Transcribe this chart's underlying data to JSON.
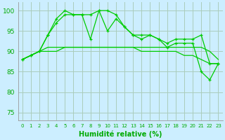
{
  "xlabel": "Humidité relative (%)",
  "bg_color": "#cceeff",
  "grid_color": "#aaccbb",
  "line_color": "#00cc00",
  "xlim": [
    -0.5,
    23.5
  ],
  "ylim": [
    73,
    102
  ],
  "yticks": [
    75,
    80,
    85,
    90,
    95,
    100
  ],
  "xticks": [
    0,
    1,
    2,
    3,
    4,
    5,
    6,
    7,
    8,
    9,
    10,
    11,
    12,
    13,
    14,
    15,
    16,
    17,
    18,
    19,
    20,
    21,
    22,
    23
  ],
  "series_marked": [
    [
      88,
      89,
      90,
      94,
      98,
      100,
      99,
      99,
      99,
      100,
      100,
      99,
      96,
      94,
      93,
      94,
      93,
      92,
      93,
      93,
      93,
      94,
      87,
      87
    ],
    [
      88,
      89,
      90,
      94,
      97,
      99,
      99,
      99,
      93,
      100,
      95,
      98,
      96,
      94,
      94,
      94,
      93,
      91,
      92,
      92,
      92,
      85,
      83,
      87
    ]
  ],
  "series_smooth": [
    [
      88,
      89,
      90,
      91,
      91,
      91,
      91,
      91,
      91,
      91,
      91,
      91,
      91,
      91,
      91,
      91,
      91,
      91,
      91,
      91,
      91,
      91,
      90,
      88
    ],
    [
      88,
      89,
      90,
      90,
      90,
      91,
      91,
      91,
      91,
      91,
      91,
      91,
      91,
      91,
      90,
      90,
      90,
      90,
      90,
      89,
      89,
      88,
      87,
      87
    ]
  ]
}
